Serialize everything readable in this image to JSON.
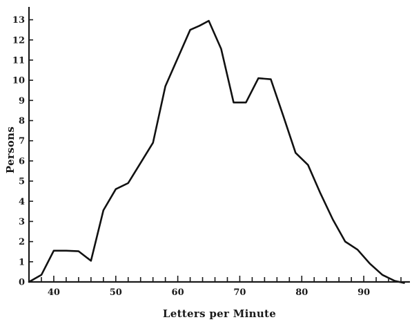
{
  "chart_data": {
    "type": "line",
    "title": "",
    "xlabel": "Letters per Minute",
    "ylabel": "Persons",
    "xlim": [
      36,
      97
    ],
    "ylim": [
      0,
      13.5
    ],
    "xticks_major": [
      40,
      50,
      60,
      70,
      80,
      90
    ],
    "xticks_minor_step": 2,
    "yticks": [
      0,
      1,
      2,
      3,
      4,
      5,
      6,
      7,
      8,
      9,
      10,
      11,
      12,
      13
    ],
    "grid": false,
    "series": [
      {
        "x": [
          36,
          38,
          40,
          42,
          44,
          46,
          48,
          50,
          52,
          54,
          56,
          58,
          60,
          62,
          63.5,
          65,
          67,
          69,
          71,
          73,
          75,
          77,
          79,
          81,
          83,
          85,
          87,
          89,
          91,
          93,
          95,
          96.5
        ],
        "y": [
          0,
          0.35,
          1.55,
          1.55,
          1.52,
          1.05,
          3.55,
          4.6,
          4.9,
          5.9,
          6.9,
          9.7,
          11.1,
          12.5,
          12.7,
          12.95,
          11.55,
          8.9,
          8.9,
          10.1,
          10.05,
          8.25,
          6.4,
          5.8,
          4.4,
          3.1,
          2.0,
          1.6,
          0.9,
          0.35,
          0.05,
          -0.05
        ],
        "color": "#111111"
      }
    ]
  }
}
